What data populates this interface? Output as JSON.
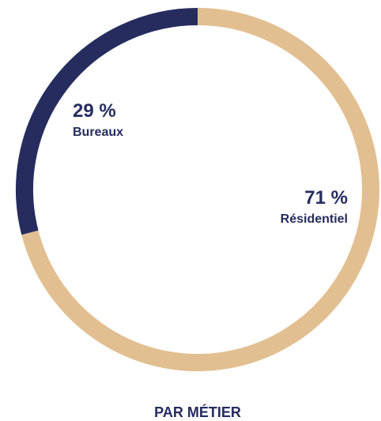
{
  "chart_data": {
    "type": "pie",
    "title": "PAR MÉTIER",
    "categories": [
      "Résidentiel",
      "Bureaux"
    ],
    "values": [
      71,
      29
    ],
    "value_labels": [
      "71 %",
      "29 %"
    ],
    "colors": [
      "#e2bf91",
      "#262c5e"
    ]
  }
}
